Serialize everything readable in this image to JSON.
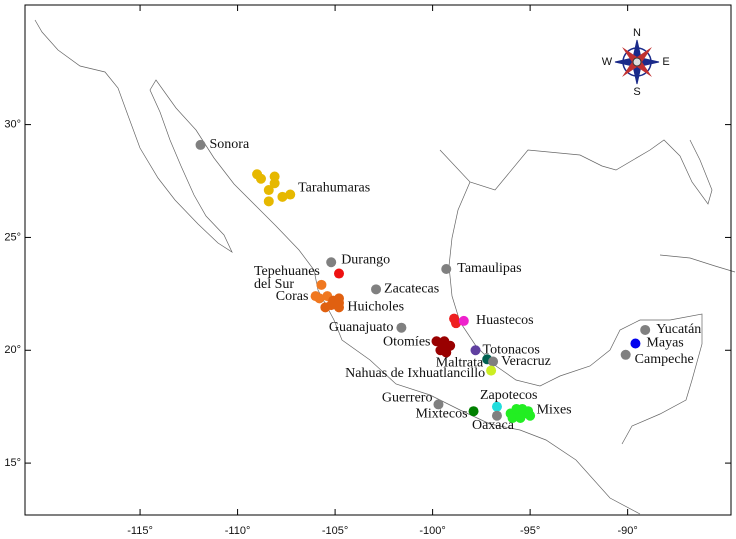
{
  "chart_data": {
    "type": "scatter",
    "xlim": [
      -120.9,
      -84.7
    ],
    "ylim": [
      12.7,
      35.3
    ],
    "xticks": [
      {
        "value": -115,
        "label": "-115°"
      },
      {
        "value": -110,
        "label": "-110°"
      },
      {
        "value": -105,
        "label": "-105°"
      },
      {
        "value": -100,
        "label": "-100°"
      },
      {
        "value": -95,
        "label": "-95°"
      },
      {
        "value": -90,
        "label": "-90°"
      }
    ],
    "yticks": [
      {
        "value": 15,
        "label": "15°"
      },
      {
        "value": 20,
        "label": "20°"
      },
      {
        "value": 25,
        "label": "25°"
      },
      {
        "value": 30,
        "label": "30°"
      }
    ],
    "compass_labels": {
      "N": "N",
      "E": "E",
      "S": "S",
      "W": "W"
    },
    "series": [
      {
        "name": "Sonora",
        "color": "#808080",
        "x": [
          -111.9
        ],
        "y": [
          29.1
        ]
      },
      {
        "name": "Tarahumaras",
        "color": "#e6b800",
        "x": [
          -109.0,
          -108.8,
          -108.1,
          -108.1,
          -108.4,
          -108.4,
          -107.7,
          -107.3
        ],
        "y": [
          27.8,
          27.6,
          27.7,
          27.4,
          27.1,
          26.6,
          26.8,
          26.9
        ]
      },
      {
        "name": "Durango",
        "color": "#808080",
        "x": [
          -105.2
        ],
        "y": [
          23.9
        ]
      },
      {
        "name": "Tepehuanes del Sur",
        "color": "#ee1111",
        "x": [
          -104.8
        ],
        "y": [
          23.4
        ]
      },
      {
        "name": "Coras",
        "color": "#f07820",
        "x": [
          -105.7,
          -106.0,
          -105.8,
          -105.4
        ],
        "y": [
          22.9,
          22.4,
          22.3,
          22.4
        ]
      },
      {
        "name": "Huicholes",
        "color": "#e06010",
        "x": [
          -105.5,
          -105.1,
          -104.8,
          -104.8,
          -105.2,
          -104.8
        ],
        "y": [
          21.9,
          22.2,
          22.3,
          21.9,
          22.0,
          22.1
        ]
      },
      {
        "name": "Zacatecas",
        "color": "#808080",
        "x": [
          -102.9
        ],
        "y": [
          22.7
        ]
      },
      {
        "name": "Tamaulipas",
        "color": "#808080",
        "x": [
          -99.3
        ],
        "y": [
          23.6
        ]
      },
      {
        "name": "Guanajuato",
        "color": "#808080",
        "x": [
          -101.6
        ],
        "y": [
          21.0
        ]
      },
      {
        "name": "Huastecos",
        "color": "#ee2020",
        "x": [
          -98.9,
          -98.8
        ],
        "y": [
          21.4,
          21.2
        ]
      },
      {
        "color": "#ee22cc",
        "x": [
          -98.4
        ],
        "y": [
          21.3
        ]
      },
      {
        "name": "Otomíes",
        "color": "#990000",
        "x": [
          -99.8,
          -99.4,
          -99.1,
          -99.6,
          -99.3,
          -99.5,
          -99.2
        ],
        "y": [
          20.4,
          20.4,
          20.2,
          20.0,
          19.9,
          20.1,
          20.2
        ]
      },
      {
        "name": "Totonacos",
        "color": "#6040a0",
        "x": [
          -97.8
        ],
        "y": [
          20.0
        ]
      },
      {
        "name": "Maltrata",
        "color": "#006050",
        "x": [
          -97.2
        ],
        "y": [
          19.6
        ]
      },
      {
        "name": "Veracruz",
        "color": "#808080",
        "x": [
          -96.9
        ],
        "y": [
          19.5
        ]
      },
      {
        "name": "Nahuas de Ixhuatlancillo",
        "color": "#ccee22",
        "x": [
          -97.0
        ],
        "y": [
          19.1
        ]
      },
      {
        "name": "Campeche",
        "color": "#808080",
        "x": [
          -90.1
        ],
        "y": [
          19.8
        ]
      },
      {
        "name": "Mayas",
        "color": "#0000ee",
        "x": [
          -89.6
        ],
        "y": [
          20.3
        ]
      },
      {
        "name": "Yucatán",
        "color": "#808080",
        "x": [
          -89.1
        ],
        "y": [
          20.9
        ]
      },
      {
        "name": "Zapotecos",
        "color": "#22dddd",
        "x": [
          -96.7
        ],
        "y": [
          17.5
        ]
      },
      {
        "name": "Guerrero",
        "color": "#808080",
        "x": [
          -99.7
        ],
        "y": [
          17.6
        ]
      },
      {
        "name": "Mixtecos",
        "color": "#008000",
        "x": [
          -97.9
        ],
        "y": [
          17.3
        ]
      },
      {
        "name": "Oaxaca",
        "color": "#808080",
        "x": [
          -96.7
        ],
        "y": [
          17.1
        ]
      },
      {
        "name": "Mixes",
        "color": "#22ee22",
        "x": [
          -96.0,
          -95.6,
          -95.3,
          -95.0,
          -95.9,
          -95.5,
          -95.1,
          -95.7,
          -95.4
        ],
        "y": [
          17.2,
          17.3,
          17.2,
          17.1,
          17.0,
          17.0,
          17.3,
          17.4,
          17.4
        ]
      }
    ]
  }
}
